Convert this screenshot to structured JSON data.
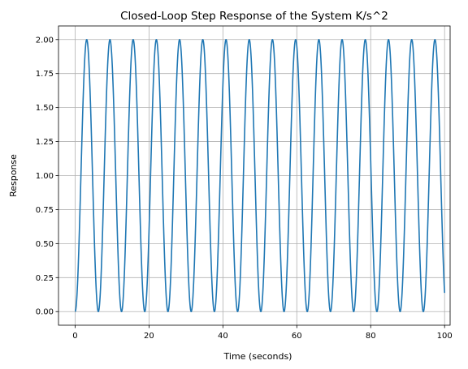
{
  "chart_data": {
    "type": "line",
    "title": "Closed-Loop Step Response of the System K/s^2",
    "xlabel": "Time (seconds)",
    "ylabel": "Response",
    "xlim": [
      -4.5,
      101.5
    ],
    "ylim": [
      -0.1,
      2.1
    ],
    "xticks": [
      0,
      20,
      40,
      60,
      80,
      100
    ],
    "xtick_labels": [
      "0",
      "20",
      "40",
      "60",
      "80",
      "100"
    ],
    "yticks": [
      0.0,
      0.25,
      0.5,
      0.75,
      1.0,
      1.25,
      1.5,
      1.75,
      2.0
    ],
    "ytick_labels": [
      "0.00",
      "0.25",
      "0.50",
      "0.75",
      "1.00",
      "1.25",
      "1.50",
      "1.75",
      "2.00"
    ],
    "grid": true,
    "series": [
      {
        "color": "#1f77b4",
        "function": "1 - cos(t)",
        "x_start": 0,
        "x_end": 100,
        "period": 6.2832,
        "min": 0.0,
        "max": 2.0
      }
    ]
  }
}
